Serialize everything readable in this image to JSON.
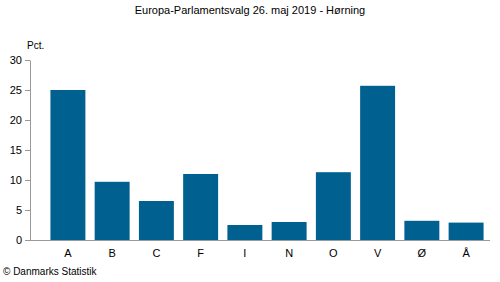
{
  "chart_data": {
    "type": "bar",
    "title": "Europa-Parlamentsvalg 26. maj 2019 - Hørning",
    "ylabel": "Pct.",
    "annotation": "© Danmarks Statistik",
    "categories": [
      "A",
      "B",
      "C",
      "F",
      "I",
      "N",
      "O",
      "V",
      "Ø",
      "Å"
    ],
    "values": [
      25.0,
      9.7,
      6.5,
      11.0,
      2.5,
      3.0,
      11.3,
      25.7,
      3.2,
      2.9
    ],
    "color": "#00608f",
    "ylim": [
      0,
      30
    ],
    "yticks": [
      0,
      5,
      10,
      15,
      20,
      25,
      30
    ],
    "grid": false
  }
}
